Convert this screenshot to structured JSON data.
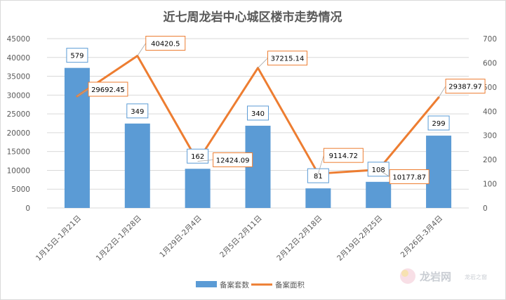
{
  "chart_data": {
    "type": "bar+line",
    "title": "近七周龙岩中心城区楼市走势情况",
    "categories": [
      "1月15日-1月21日",
      "1月22日-1月28日",
      "1月29日-2月4日",
      "2月5日-2月11日",
      "2月12日-2月18日",
      "2月19日-2月25日",
      "2月26日-3月4日"
    ],
    "series": [
      {
        "name": "备案套数",
        "type": "bar",
        "axis": "right",
        "color": "#5b9bd5",
        "values": [
          579,
          349,
          162,
          340,
          81,
          108,
          299
        ],
        "labels": [
          "579",
          "349",
          "162",
          "340",
          "81",
          "108",
          "299"
        ]
      },
      {
        "name": "备案面积",
        "type": "line",
        "axis": "left",
        "color": "#ed7d31",
        "values": [
          29692.45,
          40420.5,
          12424.09,
          37215.14,
          9114.72,
          10177.87,
          29387.97
        ],
        "labels": [
          "29692.45",
          "40420.5",
          "12424.09",
          "37215.14",
          "9114.72",
          "10177.87",
          "29387.97"
        ]
      }
    ],
    "y_left": {
      "range": [
        0,
        45000
      ],
      "ticks": [
        "0",
        "5000",
        "10000",
        "15000",
        "20000",
        "25000",
        "30000",
        "35000",
        "40000",
        "45000"
      ]
    },
    "y_right": {
      "range": [
        0,
        700
      ],
      "ticks": [
        "0",
        "100",
        "200",
        "300",
        "400",
        "500",
        "600",
        "700"
      ]
    },
    "grid": true,
    "legend_position": "bottom"
  },
  "watermark": {
    "text": "龙岩网",
    "sub": "龙岩之窗"
  }
}
